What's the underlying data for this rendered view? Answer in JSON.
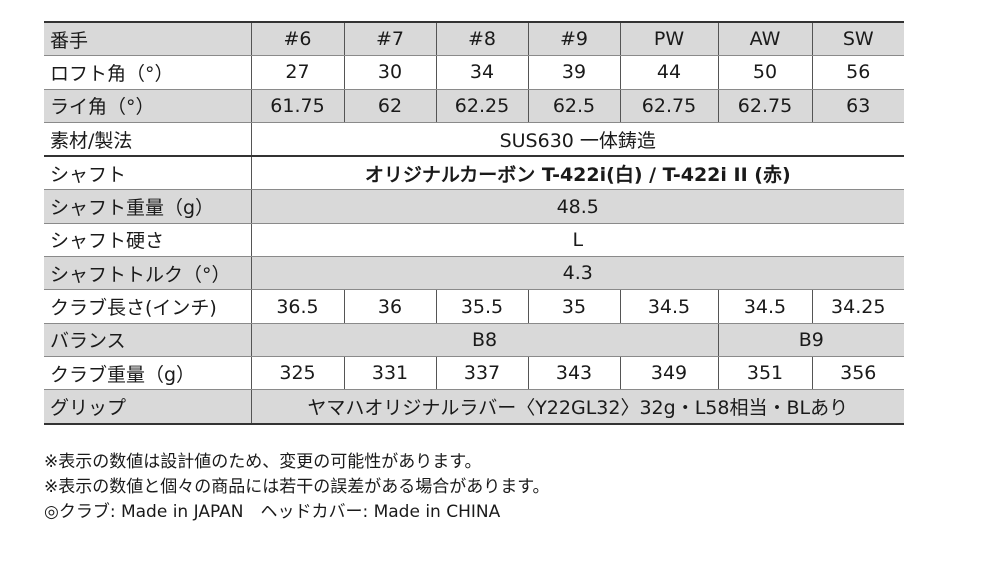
{
  "header": {
    "label": "番手",
    "clubs": [
      "#6",
      "#7",
      "#8",
      "#9",
      "PW",
      "AW",
      "SW"
    ]
  },
  "loft": {
    "label": "ロフト角（°）",
    "values": [
      "27",
      "30",
      "34",
      "39",
      "44",
      "50",
      "56"
    ]
  },
  "lie": {
    "label": "ライ角（°）",
    "values": [
      "61.75",
      "62",
      "62.25",
      "62.5",
      "62.75",
      "62.75",
      "63"
    ]
  },
  "material": {
    "label": "素材/製法",
    "value": "SUS630 一体鋳造"
  },
  "shaft": {
    "label": "シャフト",
    "value": "オリジナルカーボン T-422i(白) / T-422i II (赤)"
  },
  "shaft_weight": {
    "label": "シャフト重量（g）",
    "value": "48.5"
  },
  "shaft_flex": {
    "label": "シャフト硬さ",
    "value": "L"
  },
  "shaft_torque": {
    "label": "シャフトトルク（°）",
    "value": "4.3"
  },
  "length": {
    "label": "クラブ長さ(インチ)",
    "values": [
      "36.5",
      "36",
      "35.5",
      "35",
      "34.5",
      "34.5",
      "34.25"
    ]
  },
  "balance": {
    "label": "バランス",
    "value_left": "B8",
    "value_right": "B9"
  },
  "club_weight": {
    "label": "クラブ重量（g）",
    "values": [
      "325",
      "331",
      "337",
      "343",
      "349",
      "351",
      "356"
    ]
  },
  "grip": {
    "label": "グリップ",
    "value": "ヤマハオリジナルラバー〈Y22GL32〉32g・L58相当・BLあり"
  },
  "notes": [
    "※表示の数値は設計値のため、変更の可能性があります。",
    "※表示の数値と個々の商品には若干の誤差がある場合があります。",
    "◎クラブ: Made in JAPAN　ヘッドカバー: Made in CHINA"
  ]
}
